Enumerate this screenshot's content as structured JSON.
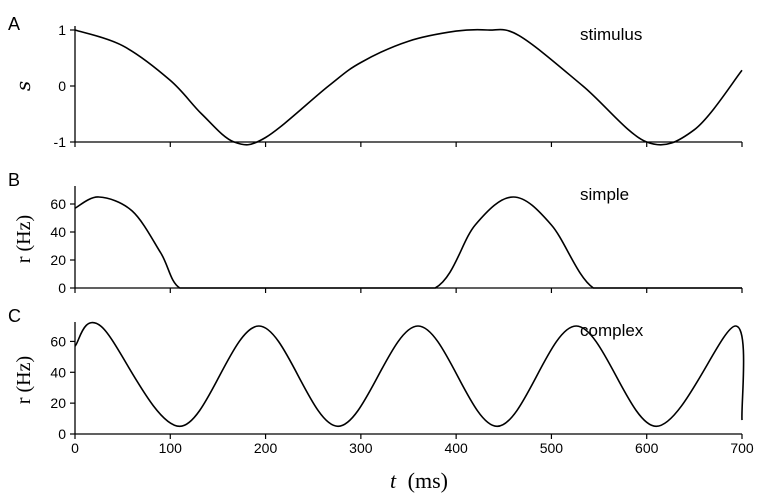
{
  "xlabel": {
    "var": "t",
    "unit": "(ms)"
  },
  "chart_data": [
    {
      "panel": "A",
      "type": "line",
      "title": "stimulus",
      "ylabel": "s",
      "ylabel_italic": true,
      "xlim": [
        0,
        700
      ],
      "ylim": [
        -1,
        1
      ],
      "yticks": [
        -1,
        0,
        1
      ],
      "xticks": [
        0,
        100,
        200,
        300,
        400,
        500,
        600,
        700
      ],
      "show_xtick_labels": false,
      "series": [
        {
          "values_fn": "cos",
          "period_ms": 533,
          "x": [
            0,
            50,
            100,
            133,
            167,
            200,
            266,
            300,
            350,
            400,
            433,
            466,
            533,
            600,
            650,
            700
          ],
          "y": [
            1,
            0.72,
            0.1,
            -0.5,
            -1,
            -0.92,
            0,
            0.42,
            0.8,
            0.98,
            1,
            0.9,
            0,
            -1,
            -0.78,
            0.28
          ]
        }
      ]
    },
    {
      "panel": "B",
      "type": "line",
      "title": "simple",
      "ylabel": "r (Hz)",
      "xlim": [
        0,
        700
      ],
      "ylim": [
        0,
        70
      ],
      "yticks": [
        0,
        20,
        40,
        60
      ],
      "xticks": [
        0,
        100,
        200,
        300,
        400,
        500,
        600,
        700
      ],
      "show_xtick_labels": false,
      "series": [
        {
          "x": [
            0,
            25,
            60,
            90,
            110,
            150,
            200,
            300,
            378,
            420,
            460,
            500,
            544,
            600,
            700
          ],
          "y": [
            57,
            65,
            55,
            25,
            0,
            0,
            0,
            0,
            0,
            45,
            65,
            45,
            0,
            0,
            0
          ]
        }
      ]
    },
    {
      "panel": "C",
      "type": "line",
      "title": "complex",
      "ylabel": "r (Hz)",
      "xlim": [
        0,
        700
      ],
      "ylim": [
        0,
        70
      ],
      "yticks": [
        0,
        20,
        40,
        60
      ],
      "xticks": [
        0,
        100,
        200,
        300,
        400,
        500,
        600,
        700
      ],
      "show_xtick_labels": true,
      "series": [
        {
          "x": [
            0,
            27,
            110,
            193,
            276,
            360,
            443,
            526,
            610,
            693,
            700
          ],
          "y": [
            57,
            70,
            5,
            70,
            5,
            70,
            5,
            70,
            5,
            70,
            9
          ]
        }
      ]
    }
  ]
}
